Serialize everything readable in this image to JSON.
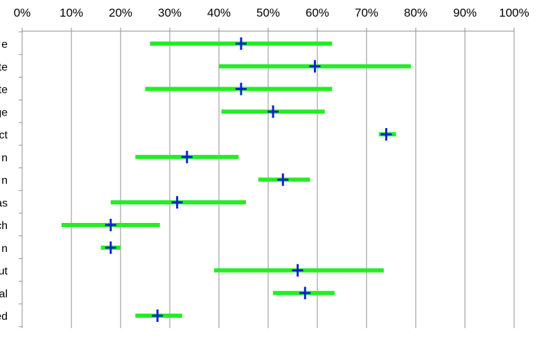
{
  "chart_data": {
    "type": "range-dot",
    "orientation": "horizontal",
    "title": "",
    "xlabel": "",
    "ylabel": "",
    "xlim": [
      0,
      100
    ],
    "xticks": [
      "0%",
      "10%",
      "20%",
      "30%",
      "40%",
      "50%",
      "60%",
      "70%",
      "80%",
      "90%",
      "100%"
    ],
    "grid": "vertical",
    "range_color": "#22ee22",
    "marker_color": "#0a22cc",
    "categories": [
      "e",
      "te",
      "te",
      "ge",
      "ct",
      "n",
      "n",
      "as",
      "ch",
      "n",
      "ut",
      "al",
      "ed"
    ],
    "low": [
      26,
      40,
      25,
      40.5,
      72.5,
      23,
      48,
      18,
      8,
      16,
      39,
      51,
      23
    ],
    "high": [
      63,
      79,
      63,
      61.5,
      76,
      44,
      58.5,
      45.5,
      28,
      20,
      73.5,
      63.5,
      32.5
    ],
    "mid": [
      44.5,
      59.5,
      44.5,
      51,
      74,
      33.5,
      53,
      31.5,
      18,
      18,
      56,
      57.5,
      27.5
    ]
  }
}
